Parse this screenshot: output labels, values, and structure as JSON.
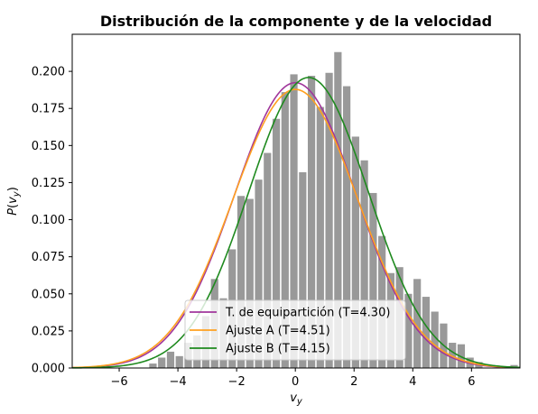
{
  "chart_data": {
    "type": "bar",
    "title": "Distribución de la componente y de la velocidad",
    "xlabel": "v_y",
    "ylabel": "P(v_y)",
    "xlim": [
      -7.6,
      7.65
    ],
    "ylim": [
      0,
      0.225
    ],
    "xticks": [
      -6,
      -4,
      -2,
      0,
      2,
      4,
      6
    ],
    "yticks": [
      0.0,
      0.025,
      0.05,
      0.075,
      0.1,
      0.125,
      0.15,
      0.175,
      0.2
    ],
    "xtick_labels": [
      "−6",
      "−4",
      "−2",
      "0",
      "2",
      "4",
      "6"
    ],
    "ytick_labels": [
      "0.000",
      "0.025",
      "0.050",
      "0.075",
      "0.100",
      "0.125",
      "0.150",
      "0.175",
      "0.200"
    ],
    "histogram": {
      "color": "#999999",
      "bin_width": 0.3,
      "bins": [
        {
          "x": -4.85,
          "height": 0.003
        },
        {
          "x": -4.55,
          "height": 0.007
        },
        {
          "x": -4.25,
          "height": 0.011
        },
        {
          "x": -3.95,
          "height": 0.008
        },
        {
          "x": -3.65,
          "height": 0.017
        },
        {
          "x": -3.35,
          "height": 0.022
        },
        {
          "x": -3.05,
          "height": 0.035
        },
        {
          "x": -2.75,
          "height": 0.06
        },
        {
          "x": -2.45,
          "height": 0.047
        },
        {
          "x": -2.15,
          "height": 0.08
        },
        {
          "x": -1.85,
          "height": 0.116
        },
        {
          "x": -1.55,
          "height": 0.114
        },
        {
          "x": -1.25,
          "height": 0.127
        },
        {
          "x": -0.95,
          "height": 0.145
        },
        {
          "x": -0.65,
          "height": 0.168
        },
        {
          "x": -0.35,
          "height": 0.186
        },
        {
          "x": -0.05,
          "height": 0.198
        },
        {
          "x": 0.25,
          "height": 0.132
        },
        {
          "x": 0.55,
          "height": 0.197
        },
        {
          "x": 0.85,
          "height": 0.176
        },
        {
          "x": 1.15,
          "height": 0.199
        },
        {
          "x": 1.45,
          "height": 0.213
        },
        {
          "x": 1.75,
          "height": 0.19
        },
        {
          "x": 2.05,
          "height": 0.156
        },
        {
          "x": 2.35,
          "height": 0.14
        },
        {
          "x": 2.65,
          "height": 0.118
        },
        {
          "x": 2.95,
          "height": 0.089
        },
        {
          "x": 3.25,
          "height": 0.064
        },
        {
          "x": 3.55,
          "height": 0.068
        },
        {
          "x": 3.85,
          "height": 0.05
        },
        {
          "x": 4.15,
          "height": 0.06
        },
        {
          "x": 4.45,
          "height": 0.048
        },
        {
          "x": 4.75,
          "height": 0.038
        },
        {
          "x": 5.05,
          "height": 0.03
        },
        {
          "x": 5.35,
          "height": 0.017
        },
        {
          "x": 5.65,
          "height": 0.016
        },
        {
          "x": 5.95,
          "height": 0.007
        },
        {
          "x": 6.25,
          "height": 0.004
        },
        {
          "x": 7.45,
          "height": 0.002
        }
      ]
    },
    "series": [
      {
        "name": "T. de equipartición (T=4.30)",
        "color": "#a0369b",
        "mu": 0.0,
        "sigma": 2.074
      },
      {
        "name": "Ajuste A (T=4.51)",
        "color": "#ffa020",
        "mu": 0.0,
        "sigma": 2.124
      },
      {
        "name": "Ajuste B (T=4.15)",
        "color": "#1f8a1f",
        "mu": 0.45,
        "sigma": 2.037
      }
    ],
    "legend_position": "lower-center"
  }
}
